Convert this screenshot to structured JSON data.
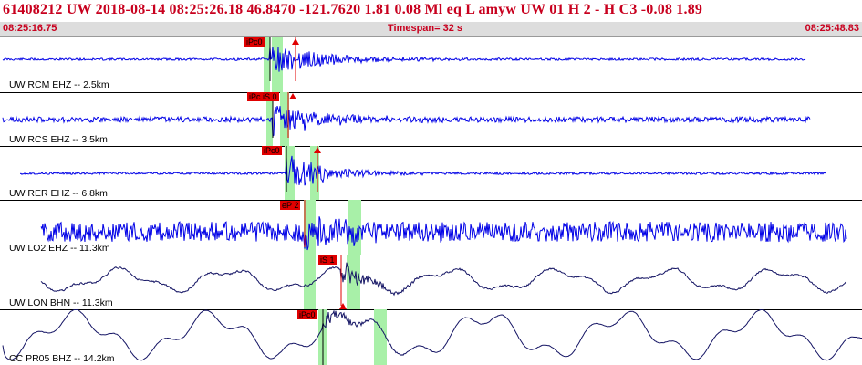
{
  "header": {
    "title": "61408212 UW 2018-08-14 08:25:26.18   46.8470 -121.7620   1.81  0.08 Ml  eq  L amyw     UW 01  H   2  -  H C3   -0.08  1.89",
    "start_time": "08:25:16.75",
    "timespan": "Timespan=  32 s",
    "end_time": "08:25:48.83"
  },
  "colors": {
    "title": "#c8001e",
    "trace_short_period": "#0000e6",
    "trace_long_period": "#141464",
    "pick_flag": "#e00000",
    "window_highlight": "#a8f0a8"
  },
  "traces": [
    {
      "label": "UW RCM EHZ -- 2.5km",
      "pick_label": "iPc0"
    },
    {
      "label": "UW RCS EHZ -- 3.5km",
      "pick_label": "iPc iS 0"
    },
    {
      "label": "UW RER EHZ -- 6.8km",
      "pick_label": "iPc0"
    },
    {
      "label": "UW LO2 EHZ -- 11.3km",
      "pick_label": "eP 2"
    },
    {
      "label": "UW LON BHN -- 11.3km",
      "pick_label": "iS 1"
    },
    {
      "label": "CC PR05 BHZ -- 14.2km",
      "pick_label": "iPc0"
    }
  ]
}
